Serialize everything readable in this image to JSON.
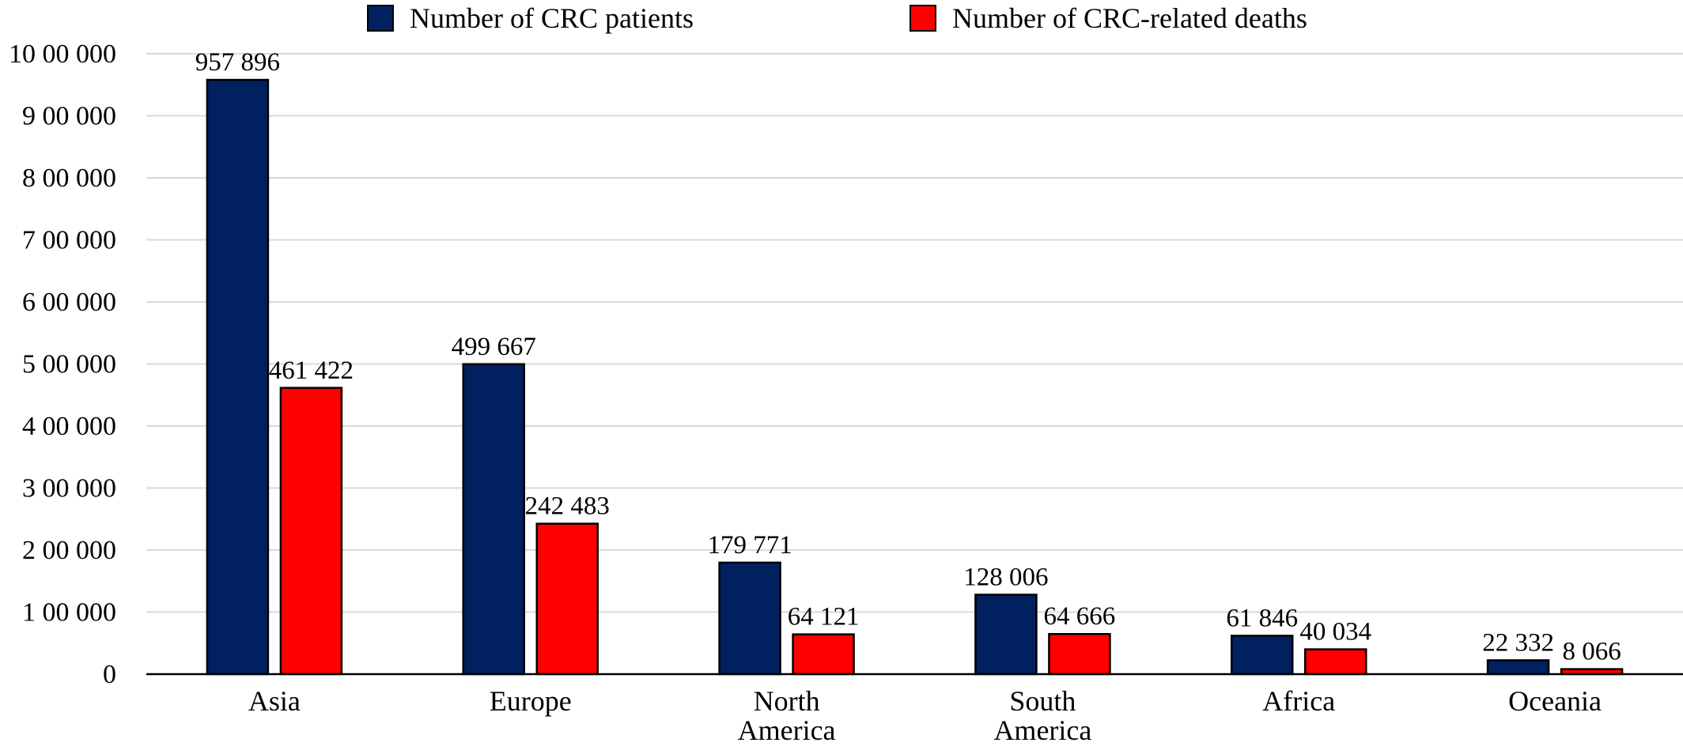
{
  "chart_data": {
    "type": "bar",
    "title": "",
    "xlabel": "",
    "ylabel": "",
    "categories": [
      [
        "Asia"
      ],
      [
        "Europe"
      ],
      [
        "North",
        "America"
      ],
      [
        "South",
        "America"
      ],
      [
        "Africa"
      ],
      [
        "Oceania"
      ]
    ],
    "series": [
      {
        "name": "Number of CRC patients",
        "color": "#002060",
        "values": [
          957896,
          499667,
          179771,
          128006,
          61846,
          22332
        ],
        "labels": [
          "957 896",
          "499 667",
          "179 771",
          "128 006",
          "61 846",
          "22 332"
        ]
      },
      {
        "name": "Number of CRC-related deaths",
        "color": "#ff0000",
        "values": [
          461422,
          242483,
          64121,
          64666,
          40034,
          8066
        ],
        "labels": [
          "461 422",
          "242 483",
          "64 121",
          "64 666",
          "40 034",
          "8 066"
        ]
      }
    ],
    "ylim": [
      0,
      1000000
    ],
    "yticks": [
      0,
      100000,
      200000,
      300000,
      400000,
      500000,
      600000,
      700000,
      800000,
      900000,
      1000000
    ],
    "ytick_labels": [
      "0",
      "1 00 000",
      "2 00 000",
      "3 00 000",
      "4 00 000",
      "5 00 000",
      "6 00 000",
      "7 00 000",
      "8 00 000",
      "9 00 000",
      "10 00 000"
    ],
    "grid": true,
    "legend_position": "top-center"
  }
}
